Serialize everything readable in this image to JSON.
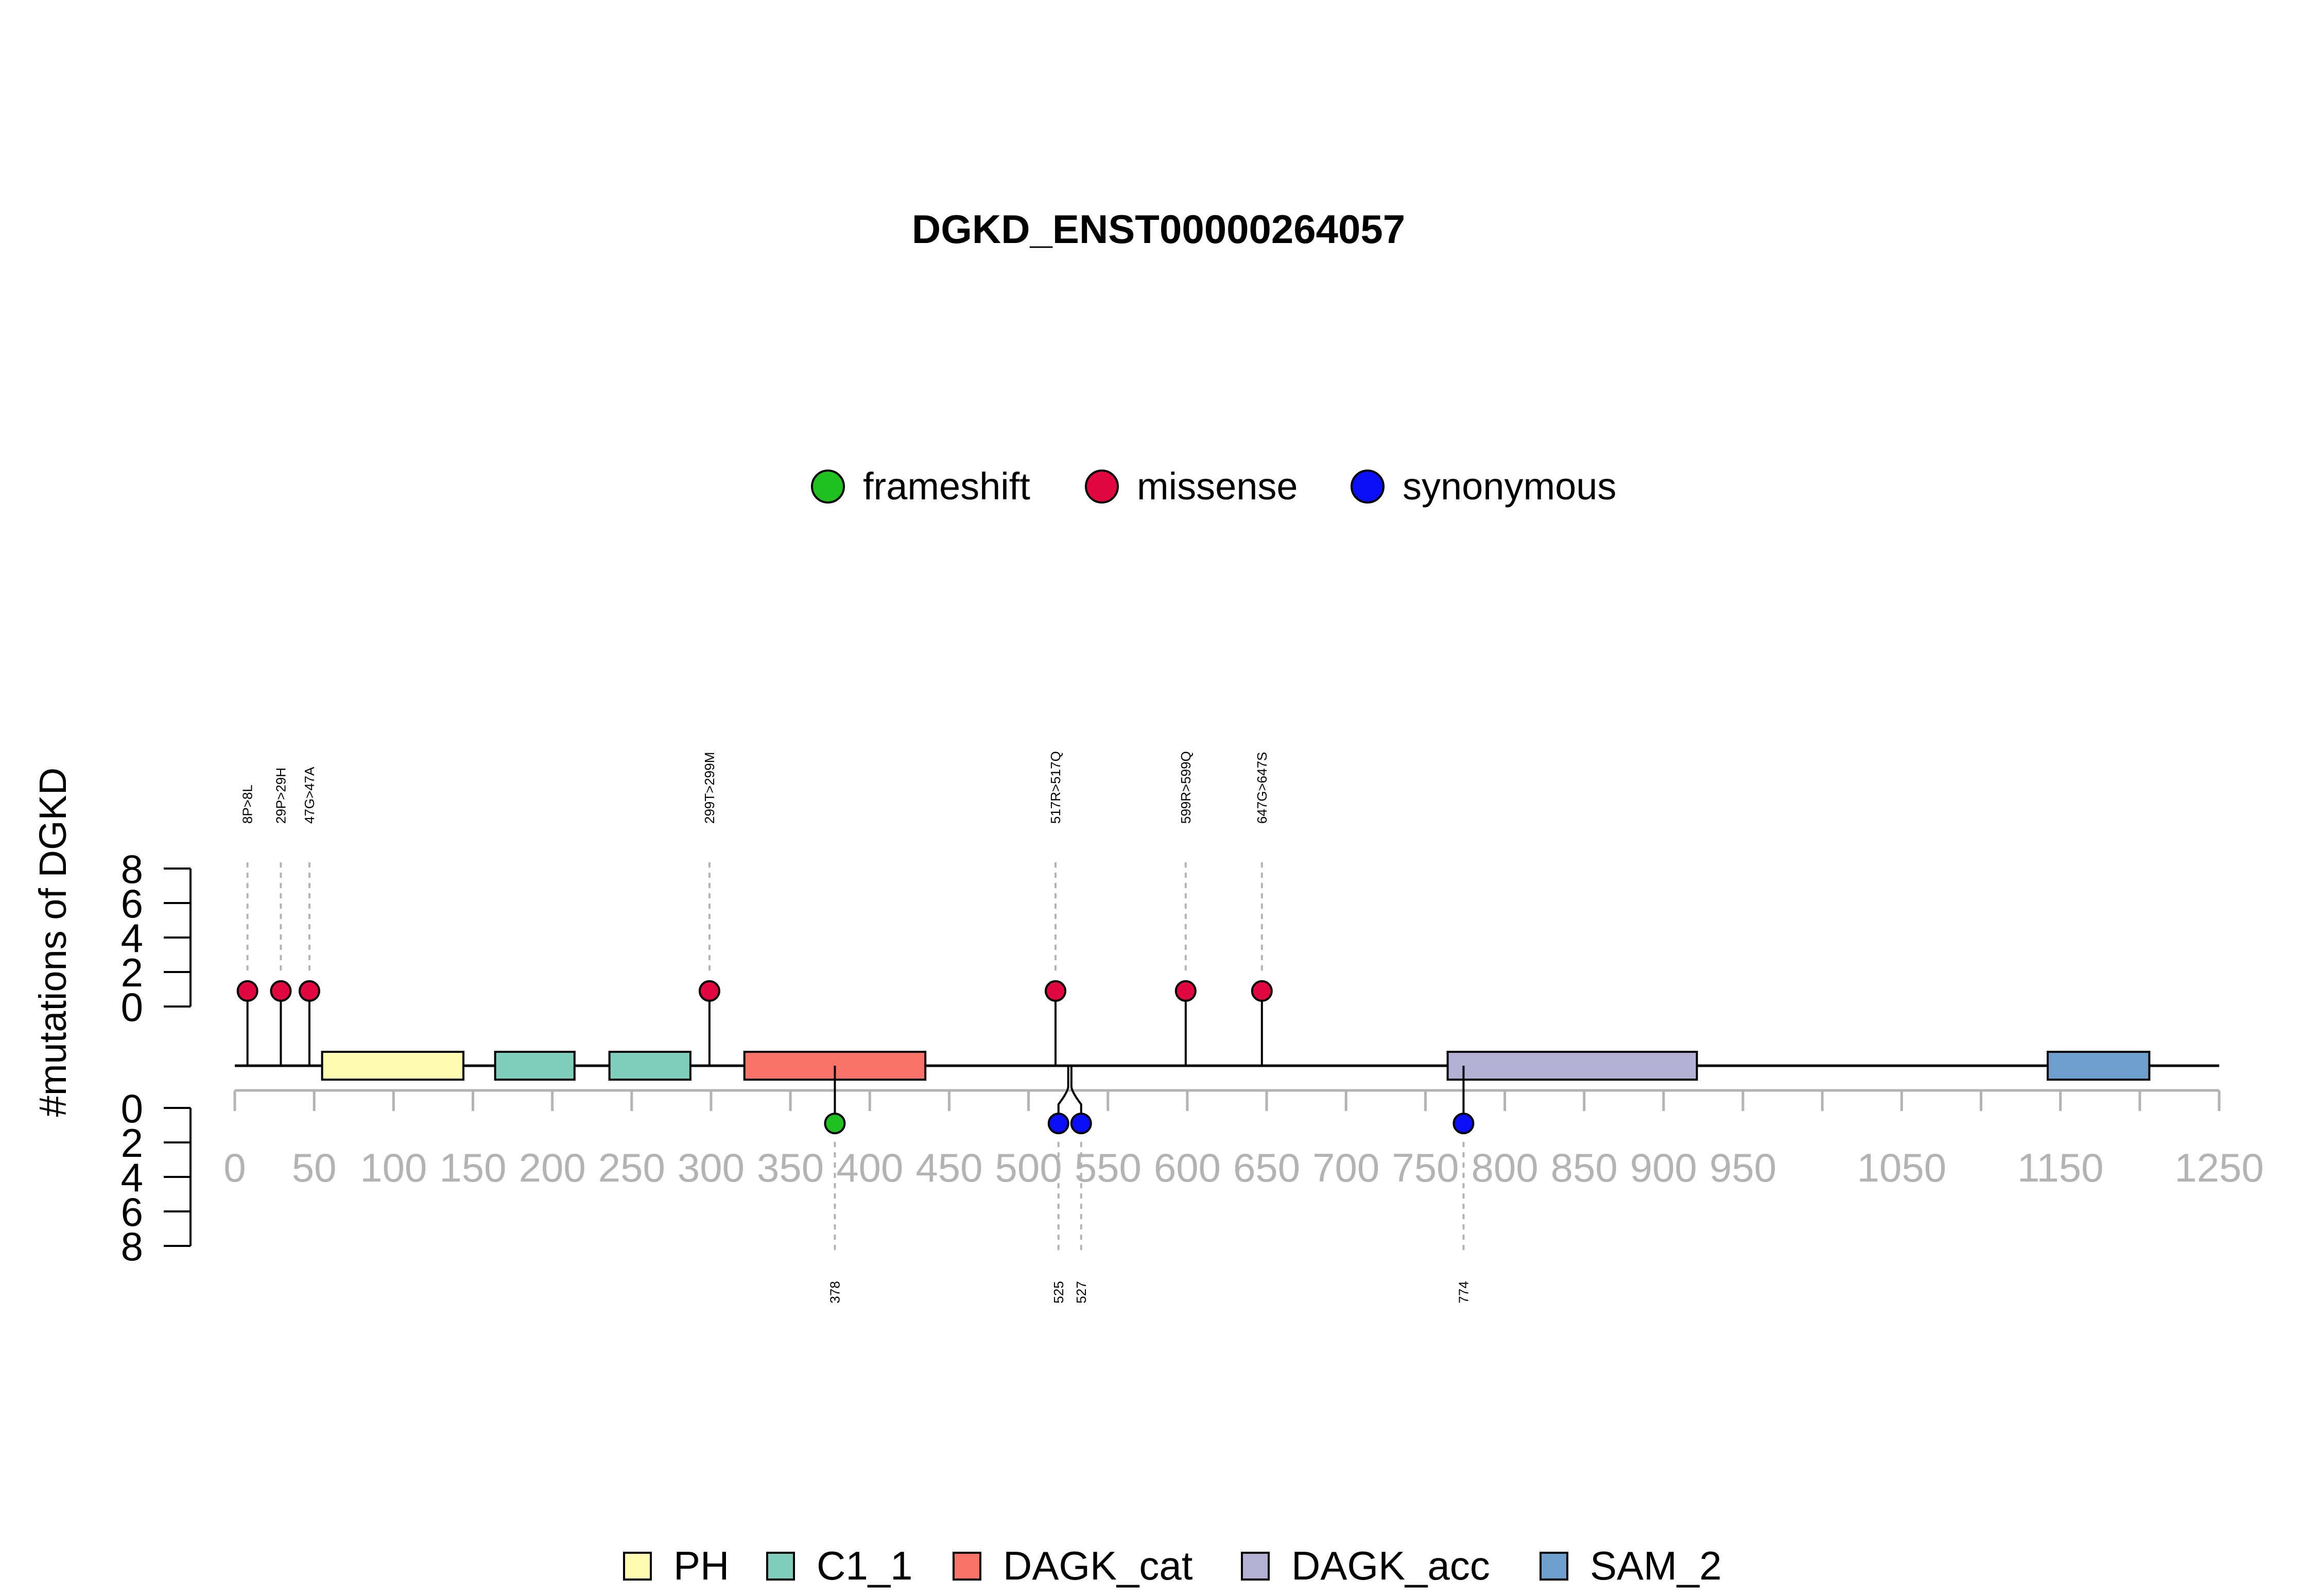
{
  "chart_data": {
    "type": "lollipop",
    "title": "DGKD_ENST00000264057",
    "ylabel": "#mutations of DGKD",
    "xlim": [
      0,
      1250
    ],
    "x_ticks": [
      0,
      50,
      100,
      150,
      200,
      250,
      300,
      350,
      400,
      450,
      500,
      550,
      600,
      650,
      700,
      750,
      800,
      850,
      900,
      950,
      1050,
      1150,
      1250
    ],
    "x_tick_marks": [
      0,
      50,
      100,
      150,
      200,
      250,
      300,
      350,
      400,
      450,
      500,
      550,
      600,
      650,
      700,
      750,
      800,
      850,
      900,
      950,
      1000,
      1050,
      1100,
      1150,
      1200,
      1250
    ],
    "y_ticks_top": [
      0,
      2,
      4,
      6,
      8
    ],
    "y_ticks_bottom": [
      0,
      2,
      4,
      6,
      8
    ],
    "ylim": [
      0,
      8
    ],
    "mutation_legend": [
      {
        "name": "frameshift",
        "color": "#1fc01f"
      },
      {
        "name": "missense",
        "color": "#e0083f"
      },
      {
        "name": "synonymous",
        "color": "#0a10f5"
      }
    ],
    "domain_legend": [
      {
        "name": "PH",
        "color": "#fffcb2"
      },
      {
        "name": "C1_1",
        "color": "#7fcdbb"
      },
      {
        "name": "DAGK_cat",
        "color": "#f8746a"
      },
      {
        "name": "DAGK_acc",
        "color": "#b3b0d6"
      },
      {
        "name": "SAM_2",
        "color": "#6e9ecb"
      }
    ],
    "domains": [
      {
        "name": "PH",
        "start": 55,
        "end": 144,
        "color": "#fffcb2"
      },
      {
        "name": "C1_1",
        "start": 164,
        "end": 214,
        "color": "#7fcdbb"
      },
      {
        "name": "C1_1",
        "start": 236,
        "end": 287,
        "color": "#7fcdbb"
      },
      {
        "name": "DAGK_cat",
        "start": 321,
        "end": 435,
        "color": "#f8746a"
      },
      {
        "name": "DAGK_acc",
        "start": 764,
        "end": 921,
        "color": "#b3b0d6"
      },
      {
        "name": "SAM_2",
        "start": 1142,
        "end": 1206,
        "color": "#6e9ecb"
      }
    ],
    "mutations_top": [
      {
        "label": "8P>8L",
        "position": 8,
        "count": 1,
        "type": "missense"
      },
      {
        "label": "29P>29H",
        "position": 29,
        "count": 1,
        "type": "missense"
      },
      {
        "label": "47G>47A",
        "position": 47,
        "count": 1,
        "type": "missense"
      },
      {
        "label": "299T>299M",
        "position": 299,
        "count": 1,
        "type": "missense"
      },
      {
        "label": "517R>517Q",
        "position": 517,
        "count": 1,
        "type": "missense"
      },
      {
        "label": "599R>599Q",
        "position": 599,
        "count": 1,
        "type": "missense"
      },
      {
        "label": "647G>647S",
        "position": 647,
        "count": 1,
        "type": "missense"
      }
    ],
    "mutations_bottom": [
      {
        "label": "378",
        "position": 378,
        "count": 1,
        "type": "frameshift"
      },
      {
        "label": "525",
        "position": 525,
        "count": 1,
        "type": "synonymous"
      },
      {
        "label": "527",
        "position": 527,
        "count": 1,
        "type": "synonymous"
      },
      {
        "label": "774",
        "position": 774,
        "count": 1,
        "type": "synonymous"
      }
    ]
  }
}
